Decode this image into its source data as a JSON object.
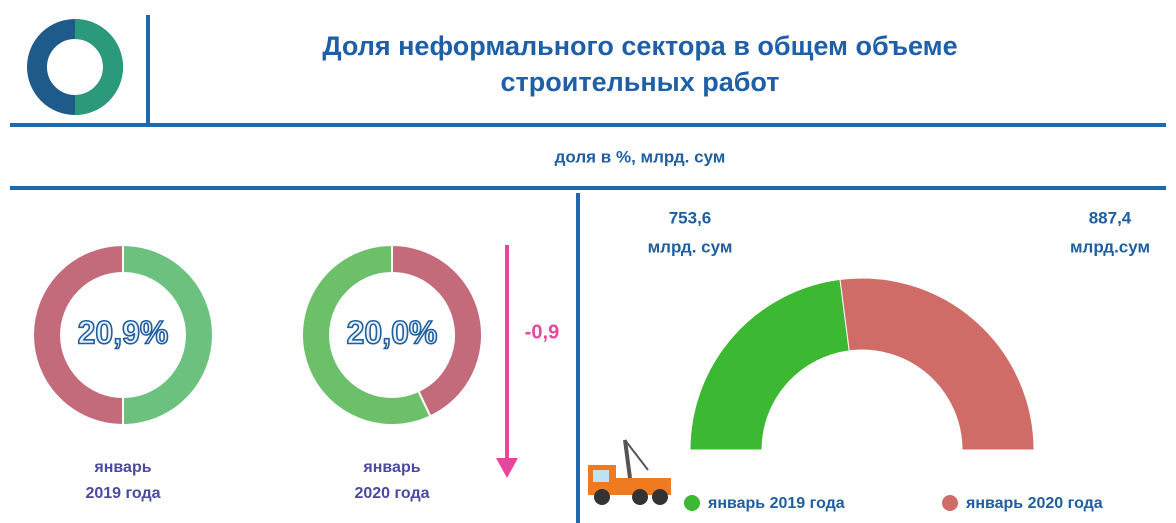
{
  "title": "Доля неформального сектора в общем объеме строительных работ",
  "subtitle": "доля в %, млрд. сум",
  "change": "-0,9",
  "chart_data": [
    {
      "type": "donut",
      "title": "январь 2019 года",
      "center_label": "20,9%",
      "values": [
        50,
        50
      ],
      "colors": [
        "#6cc17e",
        "#c46b7b"
      ]
    },
    {
      "type": "donut",
      "title": "январь 2020 года",
      "center_label": "20,0%",
      "values": [
        43,
        57
      ],
      "colors": [
        "#c46b7b",
        "#6cc06a"
      ]
    },
    {
      "type": "half-donut",
      "series": [
        {
          "name": "январь 2019 года",
          "color": "#3cb832",
          "values": [
            753.6
          ],
          "value_labels": [
            "753,6"
          ],
          "unit": "млрд. сум"
        },
        {
          "name": "январь 2020 года",
          "color": "#d06c68",
          "values": [
            887.4
          ],
          "value_labels": [
            "887,4"
          ],
          "unit": "млрд.сум"
        }
      ]
    }
  ]
}
